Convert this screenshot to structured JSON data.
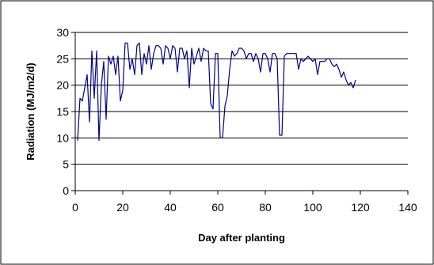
{
  "chart_data": {
    "type": "line",
    "title": "",
    "xlabel": "Day after planting",
    "ylabel": "Radiation (MJ/m2/d)",
    "xlim": [
      0,
      140
    ],
    "ylim": [
      0,
      30
    ],
    "x_ticks": [
      "0",
      "20",
      "40",
      "60",
      "80",
      "100",
      "120",
      "140"
    ],
    "y_ticks": [
      "0",
      "5",
      "10",
      "15",
      "20",
      "25",
      "30"
    ],
    "grid": "horizontal major gridlines",
    "legend": "none",
    "series_color": "#00008B",
    "series": [
      {
        "x": [
          1,
          2,
          3,
          4,
          5,
          6,
          7,
          8,
          9,
          10,
          11,
          12,
          13,
          14,
          15,
          16,
          17,
          18,
          19,
          20,
          21,
          22,
          23,
          24,
          25,
          26,
          27,
          28,
          29,
          30,
          31,
          32,
          33,
          34,
          35,
          36,
          37,
          38,
          39,
          40,
          41,
          42,
          43,
          44,
          45,
          46,
          47,
          48,
          49,
          50,
          51,
          52,
          53,
          54,
          55,
          56,
          57,
          58,
          59,
          60,
          61,
          62,
          63,
          64,
          65,
          66,
          67,
          68,
          69,
          70,
          71,
          72,
          73,
          74,
          75,
          76,
          77,
          78,
          79,
          80,
          81,
          82,
          83,
          84,
          85,
          86,
          87,
          88,
          89,
          90,
          91,
          92,
          93,
          94,
          95,
          96,
          97,
          98,
          99,
          100,
          101,
          102,
          103,
          104,
          105,
          106,
          107,
          108,
          109,
          110,
          111,
          112,
          113,
          114,
          115,
          116,
          117,
          118
        ],
        "y": [
          9.5,
          17.5,
          17,
          19.5,
          22,
          13,
          26.5,
          17.5,
          26.5,
          9.5,
          20,
          24.5,
          13.5,
          25.5,
          24,
          25.5,
          22,
          25.5,
          17,
          19,
          28,
          28,
          23,
          25,
          22,
          27.5,
          28,
          22,
          26,
          24,
          27.5,
          23,
          26,
          27.5,
          27.5,
          27,
          24,
          27.5,
          27,
          25,
          27.5,
          27,
          22.5,
          27,
          27,
          25,
          26.5,
          19.5,
          27,
          24,
          25.5,
          27,
          24.5,
          27,
          26.5,
          26.5,
          16.5,
          15.5,
          26,
          26,
          10,
          10,
          16,
          18,
          23,
          26.5,
          25.5,
          26,
          27,
          27,
          26.5,
          25,
          26,
          26,
          24.5,
          26,
          25,
          22.5,
          26,
          26,
          25,
          22.5,
          26,
          26,
          25,
          10.5,
          10.5,
          25.5,
          26,
          26,
          26,
          26,
          26,
          23,
          25,
          24.5,
          25,
          25.5,
          25,
          24.5,
          25,
          22,
          24.5,
          24.5,
          24.5,
          25,
          25,
          24,
          23.5,
          24,
          23,
          21.5,
          22.5,
          21,
          20,
          20.5,
          19.5,
          21
        ]
      }
    ]
  }
}
